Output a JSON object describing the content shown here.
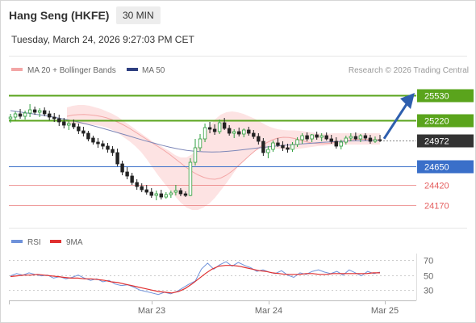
{
  "header": {
    "title": "Hang Seng (HKFE)",
    "timeframe": "30 MIN",
    "timestamp": "Tuesday, March 24, 2026 9:27:03 PM CET"
  },
  "legend": {
    "ma20_label": "MA 20 + Bollinger Bands",
    "ma50_label": "MA 50",
    "credit": "Research © 2026 Trading Central",
    "rsi_label": "RSI",
    "rsi_ma_label": "9MA"
  },
  "colors": {
    "candle_up": "#2e9e3c",
    "candle_down": "#222222",
    "bollinger_fill": "#fde3e3",
    "ma20": "#f3a6a6",
    "ma50": "#7d87b8",
    "resistance": "#5aa41c",
    "support_blue": "#3a6fc9",
    "support_red": "#e45c5c",
    "current_price": "#333333",
    "arrow": "#2e5fae",
    "rsi": "#6f92da",
    "rsi_ma": "#e03030"
  },
  "chart_data": [
    {
      "type": "candlestick",
      "x_ticks": [
        "Mar 23",
        "Mar 24",
        "Mar 25"
      ],
      "ylim": [
        23950,
        25750
      ],
      "levels": [
        {
          "value": 25530,
          "label": "25530",
          "kind": "resistance"
        },
        {
          "value": 25220,
          "label": "25220",
          "kind": "resistance"
        },
        {
          "value": 24972,
          "label": "24972",
          "kind": "current"
        },
        {
          "value": 24650,
          "label": "24650",
          "kind": "support"
        },
        {
          "value": 24420,
          "label": "24420",
          "kind": "support"
        },
        {
          "value": 24170,
          "label": "24170",
          "kind": "support"
        }
      ],
      "candles": [
        [
          25240,
          25300,
          25190,
          25260
        ],
        [
          25260,
          25330,
          25220,
          25300
        ],
        [
          25300,
          25360,
          25240,
          25270
        ],
        [
          25270,
          25340,
          25230,
          25310
        ],
        [
          25310,
          25420,
          25260,
          25350
        ],
        [
          25350,
          25390,
          25290,
          25320
        ],
        [
          25320,
          25370,
          25260,
          25340
        ],
        [
          25340,
          25380,
          25270,
          25300
        ],
        [
          25300,
          25340,
          25220,
          25260
        ],
        [
          25260,
          25310,
          25200,
          25240
        ],
        [
          25240,
          25290,
          25150,
          25200
        ],
        [
          25200,
          25250,
          25120,
          25160
        ],
        [
          25160,
          25210,
          25100,
          25180
        ],
        [
          25180,
          25230,
          25110,
          25140
        ],
        [
          25140,
          25180,
          25050,
          25090
        ],
        [
          25090,
          25140,
          25020,
          25060
        ],
        [
          25060,
          25090,
          24960,
          24990
        ],
        [
          25000,
          25030,
          24920,
          24950
        ],
        [
          24950,
          25000,
          24880,
          24930
        ],
        [
          24930,
          24970,
          24860,
          24900
        ],
        [
          24900,
          24940,
          24820,
          24860
        ],
        [
          24860,
          24900,
          24780,
          24820
        ],
        [
          24820,
          24870,
          24650,
          24680
        ],
        [
          24680,
          24720,
          24540,
          24580
        ],
        [
          24580,
          24640,
          24490,
          24530
        ],
        [
          24530,
          24570,
          24420,
          24450
        ],
        [
          24450,
          24490,
          24360,
          24400
        ],
        [
          24400,
          24440,
          24330,
          24360
        ],
        [
          24360,
          24420,
          24300,
          24330
        ],
        [
          24330,
          24380,
          24260,
          24290
        ],
        [
          24290,
          24350,
          24230,
          24310
        ],
        [
          24310,
          24360,
          24240,
          24270
        ],
        [
          24270,
          24330,
          24250,
          24300
        ],
        [
          24300,
          24350,
          24260,
          24320
        ],
        [
          24330,
          24420,
          24290,
          24350
        ],
        [
          24350,
          24380,
          24280,
          24310
        ],
        [
          24310,
          24340,
          24270,
          24290
        ],
        [
          24290,
          24750,
          24280,
          24700
        ],
        [
          24700,
          24990,
          24660,
          24880
        ],
        [
          24880,
          25050,
          24840,
          24990
        ],
        [
          24990,
          25180,
          24950,
          25130
        ],
        [
          25130,
          25200,
          25060,
          25110
        ],
        [
          25110,
          25170,
          25040,
          25080
        ],
        [
          25080,
          25230,
          25050,
          25190
        ],
        [
          25190,
          25250,
          25100,
          25120
        ],
        [
          25120,
          25160,
          25030,
          25060
        ],
        [
          25060,
          25110,
          25000,
          25080
        ],
        [
          25080,
          25130,
          25020,
          25050
        ],
        [
          25050,
          25120,
          25010,
          25100
        ],
        [
          25100,
          25140,
          25030,
          25060
        ],
        [
          25060,
          25100,
          24990,
          25020
        ],
        [
          25020,
          25060,
          24920,
          24960
        ],
        [
          24960,
          25000,
          24780,
          24820
        ],
        [
          24820,
          24900,
          24750,
          24860
        ],
        [
          24860,
          24970,
          24830,
          24940
        ],
        [
          24940,
          25000,
          24890,
          24910
        ],
        [
          24910,
          24960,
          24840,
          24880
        ],
        [
          24880,
          24930,
          24820,
          24860
        ],
        [
          24860,
          24950,
          24830,
          24920
        ],
        [
          24920,
          25010,
          24890,
          24980
        ],
        [
          24980,
          25060,
          24930,
          25030
        ],
        [
          25030,
          25070,
          24960,
          24990
        ],
        [
          24990,
          25050,
          24950,
          25040
        ],
        [
          25040,
          25080,
          24980,
          25010
        ],
        [
          25010,
          25060,
          24960,
          25030
        ],
        [
          25030,
          25070,
          24970,
          24990
        ],
        [
          24990,
          25040,
          24930,
          24960
        ],
        [
          24960,
          25010,
          24870,
          24900
        ],
        [
          24900,
          24980,
          24860,
          24950
        ],
        [
          24950,
          25030,
          24920,
          25000
        ],
        [
          25000,
          25060,
          24960,
          25020
        ],
        [
          25020,
          25070,
          24970,
          24990
        ],
        [
          24990,
          25050,
          24950,
          25030
        ],
        [
          25030,
          25060,
          24970,
          25000
        ],
        [
          25000,
          25040,
          24930,
          24960
        ],
        [
          24960,
          25020,
          24940,
          24980
        ],
        [
          24980,
          25040,
          24950,
          24972
        ]
      ],
      "ma20": [
        25270,
        25285,
        25290,
        25292,
        25288,
        25280,
        25268,
        25250,
        25225,
        25195,
        25160,
        25120,
        25075,
        25030,
        24985,
        24940,
        24895,
        24850,
        24800,
        24745,
        24690,
        24635,
        24585,
        24545,
        24515,
        24495,
        24490,
        24505,
        24540,
        24590,
        24650,
        24715,
        24780,
        24840,
        24895,
        24940,
        24975,
        25000,
        25010,
        25008,
        24995,
        24975,
        24955,
        24940,
        24932,
        24930,
        24935,
        24945,
        24958,
        24970,
        24980,
        24985,
        24985,
        24982,
        24980,
        24980
      ],
      "bb_upper": [
        25380,
        25400,
        25410,
        25410,
        25400,
        25380,
        25360,
        25330,
        25300,
        25260,
        25210,
        25160,
        25110,
        25060,
        25010,
        24960,
        24920,
        24880,
        24840,
        24790,
        24760,
        24760,
        24800,
        24900,
        25020,
        25140,
        25230,
        25290,
        25320,
        25330,
        25320,
        25300,
        25270,
        25240,
        25200,
        25160,
        25130,
        25110,
        25100,
        25095,
        25095,
        25090,
        25080,
        25070,
        25060,
        25055,
        25055,
        25060,
        25060,
        25060,
        25060,
        25060,
        25060,
        25060,
        25060,
        25060
      ],
      "bb_lower": [
        25160,
        25170,
        25170,
        25170,
        25165,
        25160,
        25150,
        25130,
        25100,
        25060,
        25010,
        24960,
        24900,
        24830,
        24740,
        24640,
        24540,
        24450,
        24360,
        24280,
        24200,
        24140,
        24110,
        24110,
        24140,
        24190,
        24260,
        24350,
        24440,
        24540,
        24640,
        24720,
        24790,
        24840,
        24870,
        24880,
        24880,
        24870,
        24860,
        24860,
        24865,
        24870,
        24880,
        24890,
        24900,
        24905,
        24910,
        24915,
        24920,
        24920,
        24920,
        24920,
        24920,
        24920,
        24920,
        24920
      ],
      "ma50": [
        25340,
        25325,
        25310,
        25295,
        25280,
        25262,
        25243,
        25222,
        25200,
        25175,
        25148,
        25120,
        25090,
        25060,
        25030,
        24998,
        24968,
        24940,
        24912,
        24886,
        24865,
        24848,
        24836,
        24830,
        24828,
        24830,
        24838,
        24848,
        24860,
        24872,
        24884,
        24895,
        24905,
        24914,
        24922,
        24930,
        24938,
        24946,
        24952,
        24958,
        24963,
        24966,
        24968,
        24970,
        24972
      ]
    },
    {
      "type": "line",
      "name": "RSI",
      "y_ticks": [
        70,
        50,
        30
      ],
      "ylim": [
        15,
        80
      ],
      "series": [
        {
          "name": "RSI",
          "values": [
            49,
            52,
            50,
            53,
            51,
            49,
            50,
            46,
            48,
            45,
            47,
            50,
            46,
            43,
            45,
            41,
            43,
            38,
            36,
            37,
            34,
            30,
            28,
            26,
            24,
            27,
            25,
            28,
            33,
            38,
            42,
            58,
            66,
            58,
            64,
            68,
            62,
            67,
            63,
            60,
            55,
            57,
            54,
            52,
            56,
            50,
            47,
            53,
            51,
            55,
            57,
            54,
            52,
            55,
            50,
            57,
            53,
            49,
            55,
            52,
            54
          ]
        },
        {
          "name": "9MA",
          "values": [
            48,
            49,
            50,
            50,
            51,
            50,
            49,
            48,
            47,
            46,
            46,
            45,
            45,
            44,
            43,
            41,
            40,
            38,
            36,
            34,
            32,
            30,
            28,
            27,
            26,
            28,
            32,
            38,
            45,
            52,
            58,
            62,
            63,
            63,
            62,
            60,
            58,
            56,
            55,
            53,
            52,
            51,
            51,
            51,
            52,
            52,
            51,
            51,
            52,
            52,
            52,
            52,
            52,
            52,
            53,
            53
          ]
        }
      ]
    }
  ]
}
